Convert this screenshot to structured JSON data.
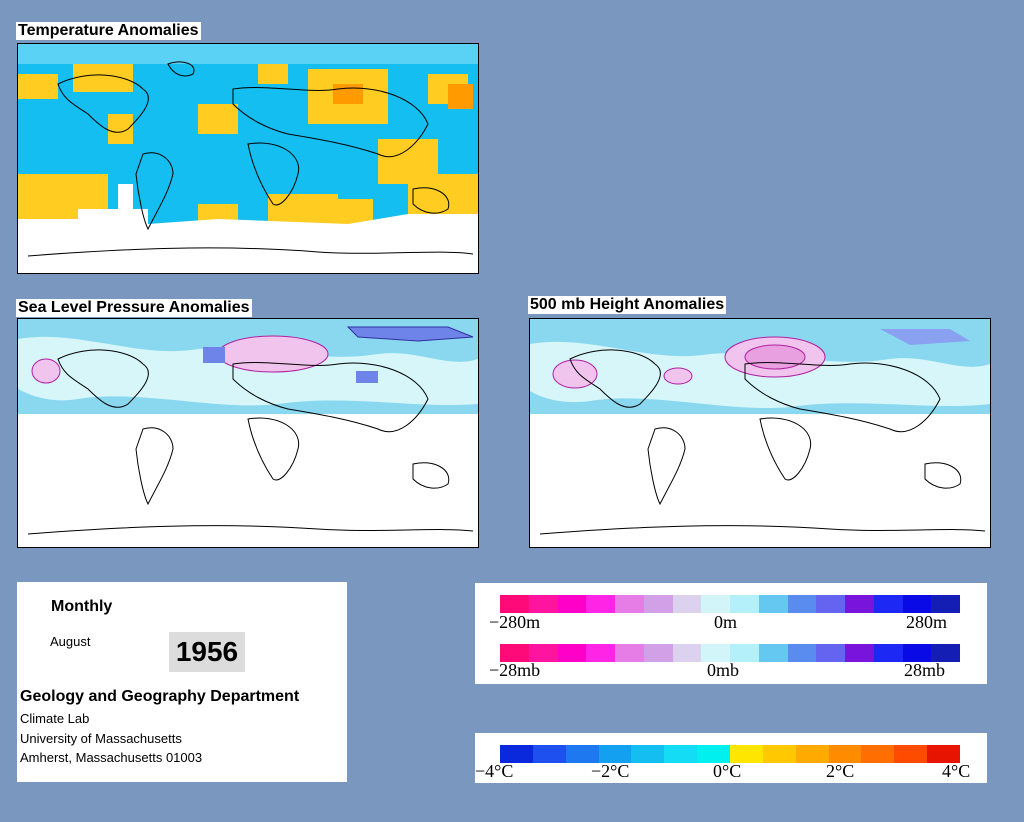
{
  "maps": {
    "temperature_title": "Temperature Anomalies",
    "slp_title": "Sea Level Pressure Anomalies",
    "height_title": "500 mb Height Anomalies"
  },
  "info": {
    "period": "Monthly",
    "month": "August",
    "year": "1956",
    "department": "Geology and Geography Department",
    "lab": "Climate Lab",
    "university": "University of Massachusetts",
    "address": "Amherst, Massachusetts 01003"
  },
  "height_legend": {
    "labels": [
      "−280m",
      "0m",
      "280m"
    ],
    "colors": [
      "#ff0a78",
      "#ff14a0",
      "#ff00c8",
      "#ff24e6",
      "#e67de6",
      "#d2a0e6",
      "#dcd2f0",
      "#d2f5fa",
      "#b4f0fa",
      "#64c8f0",
      "#5a8cf0",
      "#6464f0",
      "#7814dc",
      "#1e28f5",
      "#0a0ae6",
      "#141eb4"
    ]
  },
  "pressure_legend": {
    "labels": [
      "−28mb",
      "0mb",
      "28mb"
    ],
    "colors": [
      "#ff0a78",
      "#ff14a0",
      "#ff00c8",
      "#ff24e6",
      "#e67de6",
      "#d2a0e6",
      "#dcd2f0",
      "#d2f5fa",
      "#b4f0fa",
      "#64c8f0",
      "#5a8cf0",
      "#6464f0",
      "#7814dc",
      "#1e28f5",
      "#0a0ae6",
      "#141eb4"
    ]
  },
  "temp_legend": {
    "labels": [
      "−4°C",
      "−2°C",
      "0°C",
      "2°C",
      "4°C"
    ],
    "colors": [
      "#0a28dc",
      "#1e50f0",
      "#1e78f0",
      "#14a0f0",
      "#14bef0",
      "#14dcf5",
      "#00f0f0",
      "#ffe600",
      "#ffc800",
      "#ffaa00",
      "#ff8c00",
      "#ff6e00",
      "#ff4b00",
      "#e61400"
    ]
  }
}
